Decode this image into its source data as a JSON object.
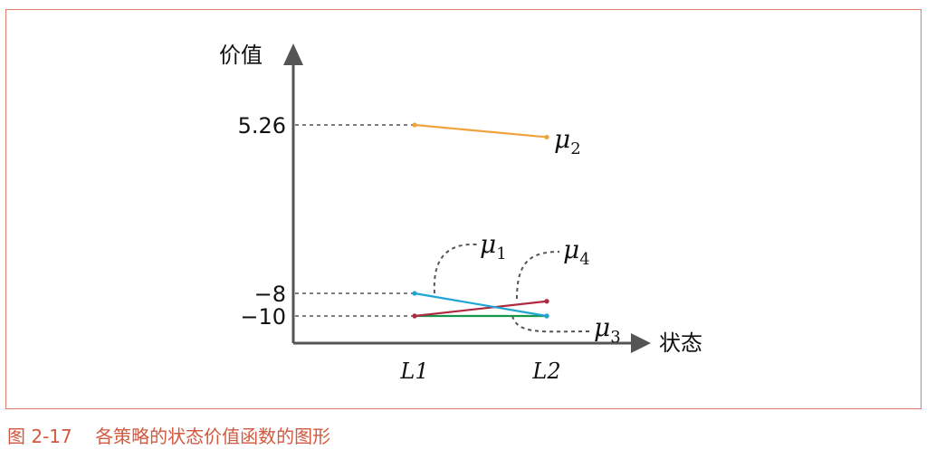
{
  "caption": {
    "figure_number": "图 2-17",
    "text": "各策略的状态价值函数的图形"
  },
  "chart_data": {
    "type": "line",
    "title": "",
    "xlabel": "状态",
    "ylabel": "价值",
    "categories": [
      "L1",
      "L2"
    ],
    "y_ticks": [
      {
        "value": 5.26,
        "label": "5.26"
      },
      {
        "value": -8,
        "label": "−8"
      },
      {
        "value": -10,
        "label": "−10"
      }
    ],
    "ylim": [
      -12.3,
      12
    ],
    "series": [
      {
        "name": "μ1",
        "label_base": "μ",
        "label_sub": "1",
        "values": [
          -8,
          -10
        ],
        "color": "#1ea5d6"
      },
      {
        "name": "μ2",
        "label_base": "μ",
        "label_sub": "2",
        "values": [
          5.26,
          4.3
        ],
        "color": "#f0a33c"
      },
      {
        "name": "μ3",
        "label_base": "μ",
        "label_sub": "3",
        "values": [
          -10,
          -10
        ],
        "color": "#16964a"
      },
      {
        "name": "μ4",
        "label_base": "μ",
        "label_sub": "4",
        "values": [
          -10,
          -8.7
        ],
        "color": "#b0283f"
      }
    ],
    "grid": false
  }
}
